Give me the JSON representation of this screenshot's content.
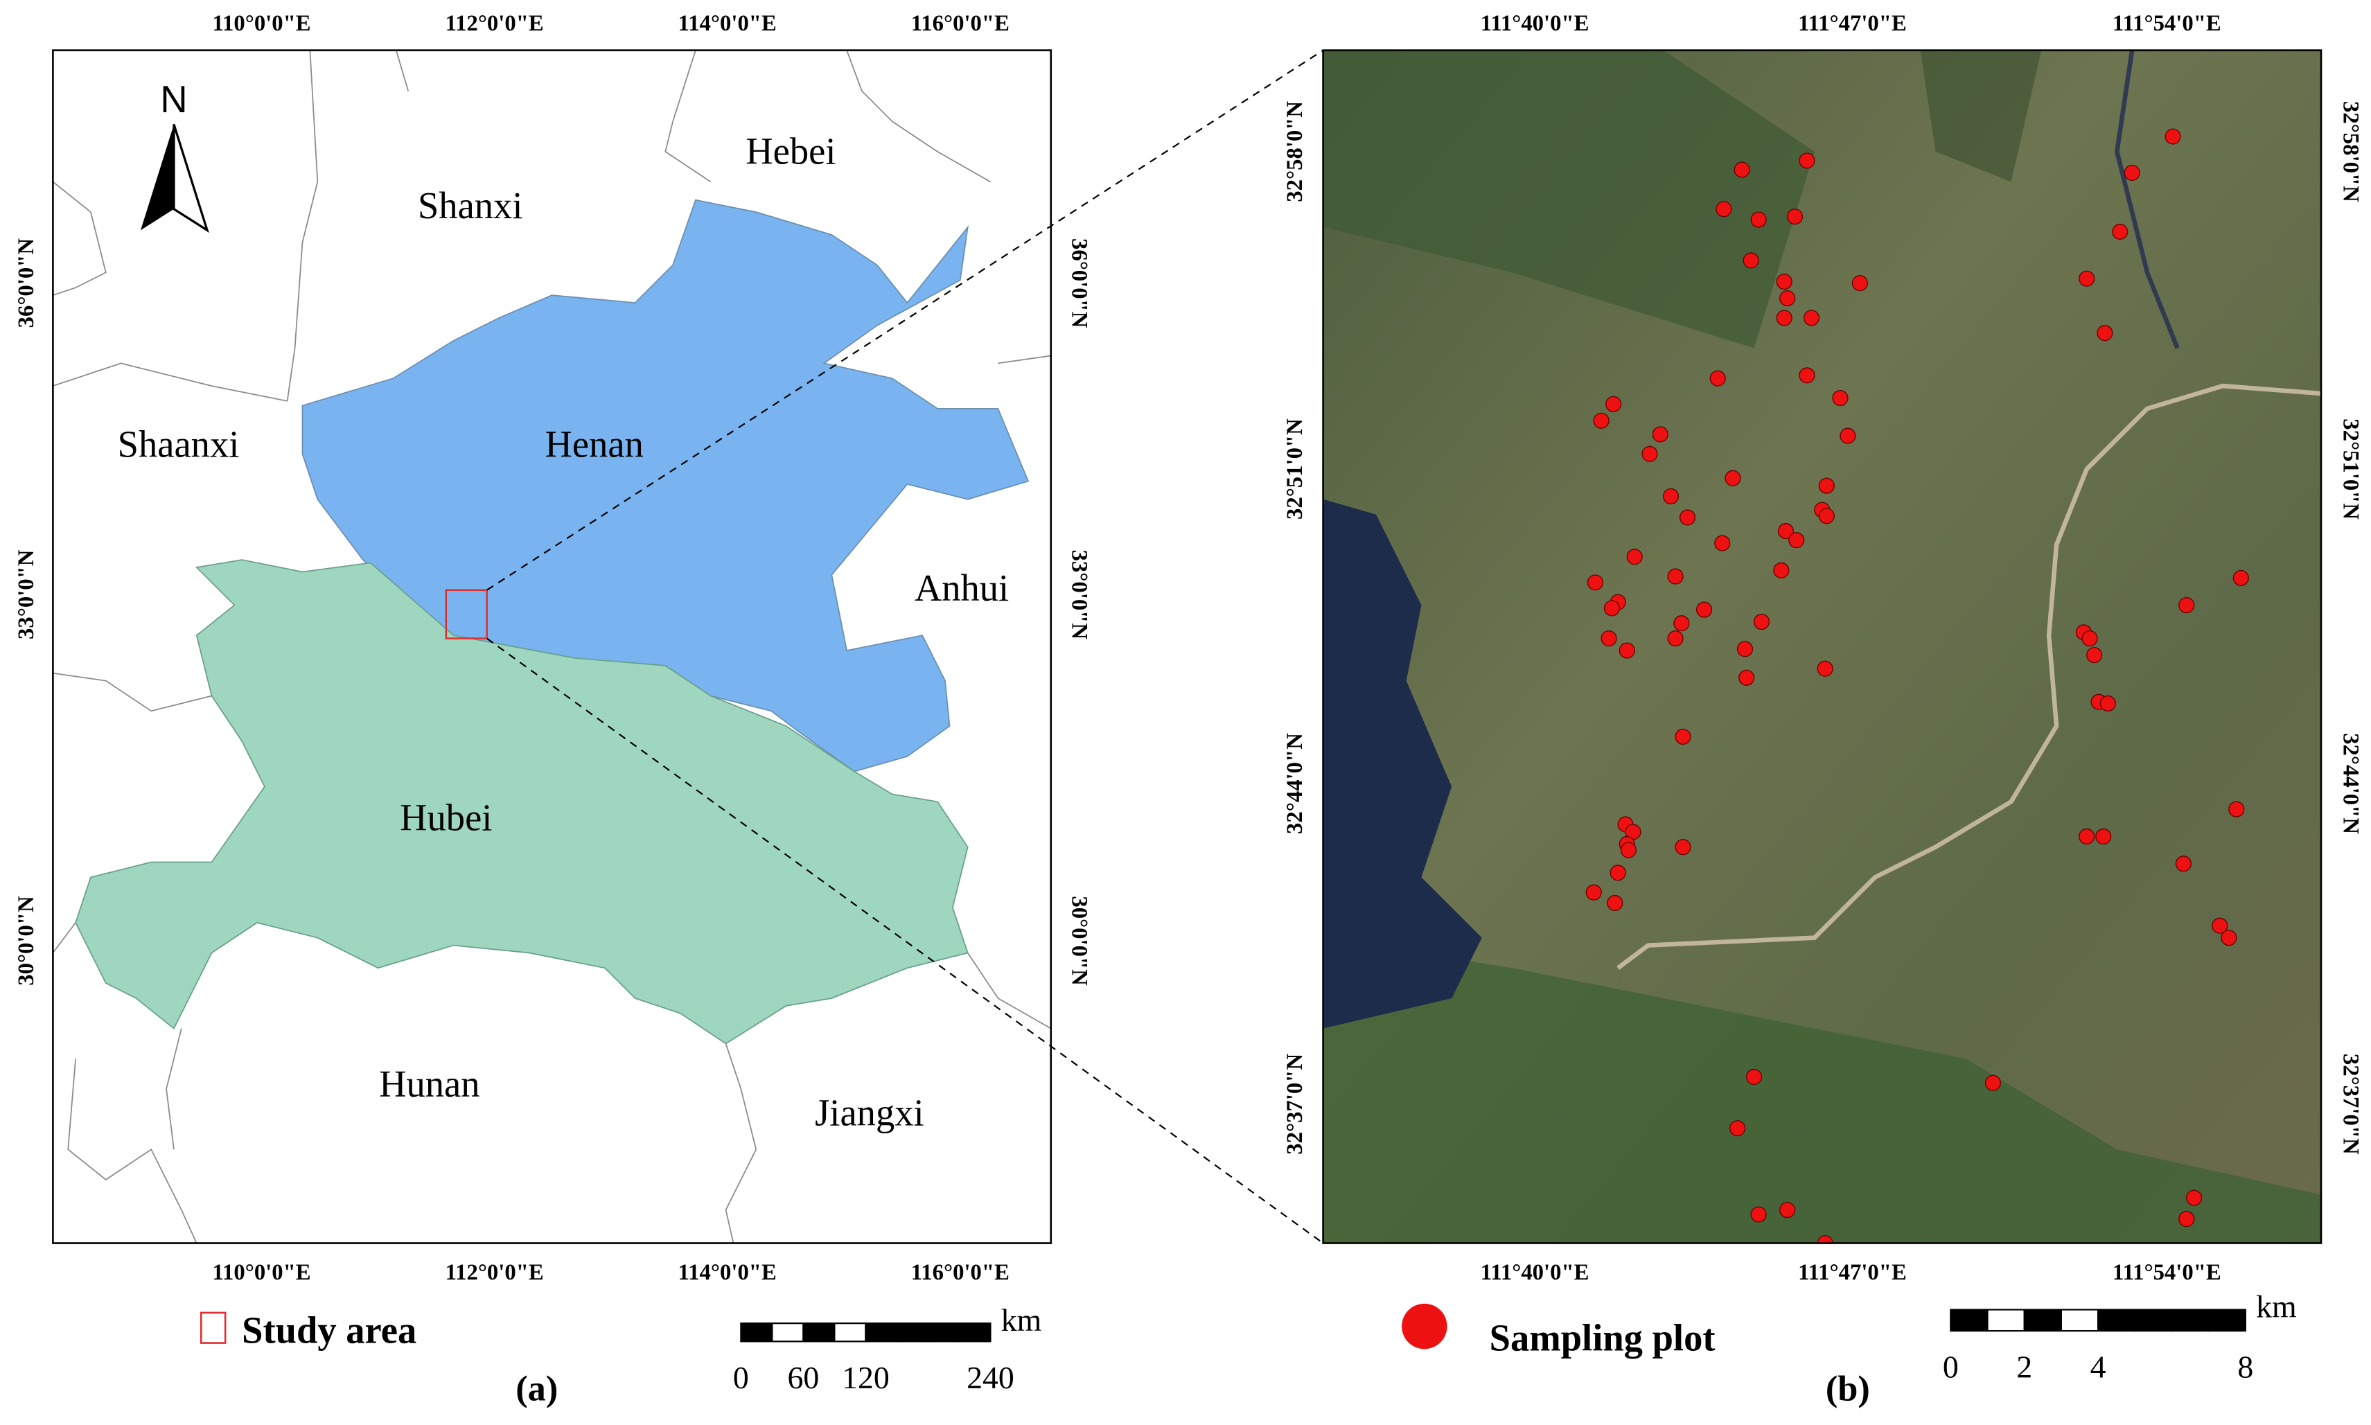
{
  "panel_a": {
    "top_labels": [
      "110°0'0\"E",
      "112°0'0\"E",
      "114°0'0\"E",
      "116°0'0\"E"
    ],
    "bottom_labels": [
      "110°0'0\"E",
      "112°0'0\"E",
      "114°0'0\"E",
      "116°0'0\"E"
    ],
    "left_labels": [
      "36°0'0\"N",
      "33°0'0\"N",
      "30°0'0\"N"
    ],
    "right_labels": [
      "36°0'0\"N",
      "33°0'0\"N",
      "30°0'0\"N"
    ],
    "provinces": [
      "Hebei",
      "Shanxi",
      "Shaanxi",
      "Henan",
      "Anhui",
      "Hubei",
      "Hunan",
      "Jiangxi"
    ],
    "north": "N",
    "legend": "Study area",
    "scale": {
      "labels": [
        0,
        60,
        120,
        240
      ],
      "unit": "km"
    },
    "caption": "(a)"
  },
  "panel_b": {
    "top_labels": [
      "111°40'0\"E",
      "111°47'0\"E",
      "111°54'0\"E"
    ],
    "bottom_labels": [
      "111°40'0\"E",
      "111°47'0\"E",
      "111°54'0\"E"
    ],
    "left_labels": [
      "32°58'0\"N",
      "32°51'0\"N",
      "32°44'0\"N",
      "32°37'0\"N"
    ],
    "right_labels": [
      "32°58'0\"N",
      "32°51'0\"N",
      "32°44'0\"N",
      "32°37'0\"N"
    ],
    "legend": "Sampling plot",
    "scale": {
      "labels": [
        0,
        2,
        4,
        8
      ],
      "unit": "km"
    },
    "caption": "(b)"
  }
}
